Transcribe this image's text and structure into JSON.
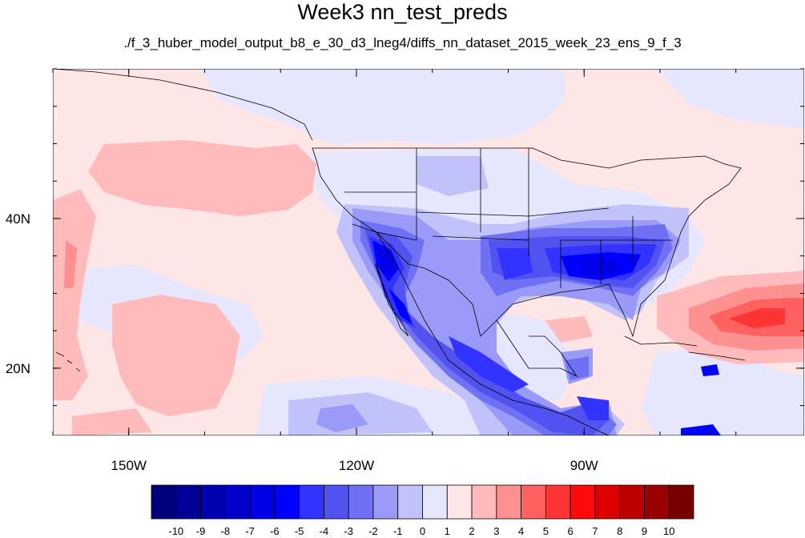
{
  "title": "Week3 nn_test_preds",
  "subtitle": "./f_3_huber_model_output_b8_e_30_d3_lneg4/diffs_nn_dataset_2015_week_23_ens_9_f_3",
  "map": {
    "lon_range": [
      -160,
      -61
    ],
    "lat_range": [
      11,
      60
    ],
    "lon_ticks": [
      {
        "value": -150,
        "label": "150W"
      },
      {
        "value": -120,
        "label": "120W"
      },
      {
        "value": -90,
        "label": "90W"
      }
    ],
    "lat_ticks": [
      {
        "value": 40,
        "label": "40N"
      },
      {
        "value": 20,
        "label": "20N"
      }
    ]
  },
  "colorbar": {
    "colors": [
      "#00007a",
      "#000099",
      "#0000b3",
      "#0000cc",
      "#0000e6",
      "#0000ff",
      "#3333ff",
      "#5252f0",
      "#7070f5",
      "#9a9af8",
      "#c2c2fb",
      "#e6e6ff",
      "#ffe6e6",
      "#ffbbbb",
      "#ff9090",
      "#ff6060",
      "#ff3535",
      "#ff0a0a",
      "#dd0000",
      "#bb0000",
      "#990000",
      "#770000"
    ],
    "labels": [
      "-10",
      "-9",
      "-8",
      "-7",
      "-6",
      "-5",
      "-4",
      "-3",
      "-2",
      "-1",
      "0",
      "1",
      "2",
      "3",
      "4",
      "5",
      "6",
      "7",
      "8",
      "9",
      "10"
    ]
  },
  "fill_colors": {
    "background": "#ffe6e6",
    "light_blue": "#e6e6ff",
    "pale_red": "#ffbbbb",
    "med_red": "#ff9090",
    "red": "#ff6060",
    "strong_red": "#ff3535",
    "pale_blue": "#c2c2fb",
    "blue2": "#9a9af8",
    "blue3": "#7070f5",
    "blue4": "#5252f0",
    "blue5": "#3333ff",
    "blue6": "#0000ff",
    "blue7": "#0000e6",
    "blue8": "#0000cc"
  }
}
